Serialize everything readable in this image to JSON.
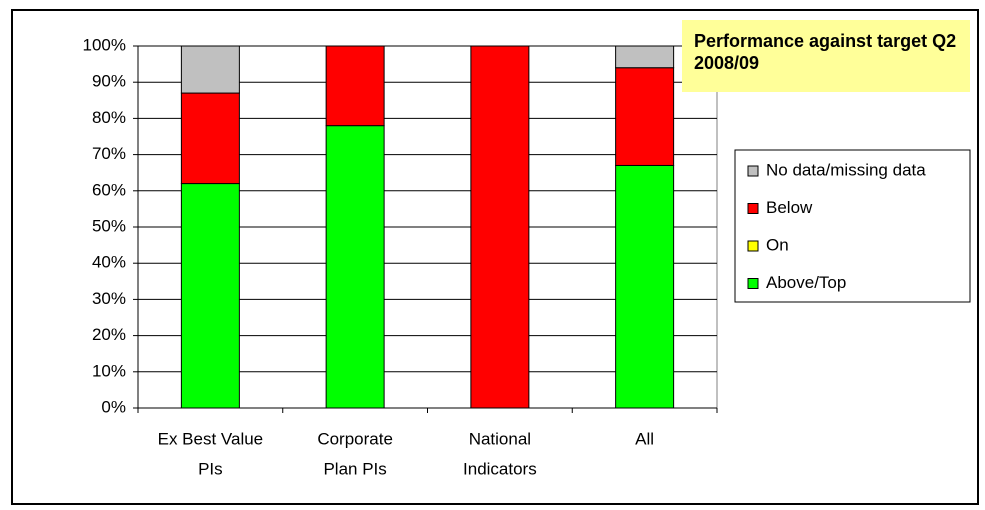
{
  "chart_data": {
    "type": "stacked_bar",
    "title": "Performance against target Q2 2008/09",
    "categories": [
      [
        "Ex Best Value",
        "PIs"
      ],
      [
        "Corporate",
        "Plan PIs"
      ],
      [
        "National",
        "Indicators"
      ],
      [
        "All"
      ]
    ],
    "series": [
      {
        "name": "Above/Top",
        "color": "#00ff00",
        "values": [
          62,
          78,
          0,
          67
        ]
      },
      {
        "name": "On",
        "color": "#ffff00",
        "values": [
          0,
          0,
          0,
          0
        ]
      },
      {
        "name": "Below",
        "color": "#ff0000",
        "values": [
          25,
          22,
          100,
          27
        ]
      },
      {
        "name": "No data/missing data",
        "color": "#c0c0c0",
        "values": [
          13,
          0,
          0,
          6
        ]
      }
    ],
    "ylim": [
      0,
      100
    ],
    "yticks": [
      {
        "value": 0,
        "label": "0%"
      },
      {
        "value": 10,
        "label": "10%"
      },
      {
        "value": 20,
        "label": "20%"
      },
      {
        "value": 30,
        "label": "30%"
      },
      {
        "value": 40,
        "label": "40%"
      },
      {
        "value": 50,
        "label": "50%"
      },
      {
        "value": 60,
        "label": "60%"
      },
      {
        "value": 70,
        "label": "70%"
      },
      {
        "value": 80,
        "label": "80%"
      },
      {
        "value": 90,
        "label": "90%"
      },
      {
        "value": 100,
        "label": "100%"
      }
    ],
    "grid": true,
    "legend": "right"
  }
}
